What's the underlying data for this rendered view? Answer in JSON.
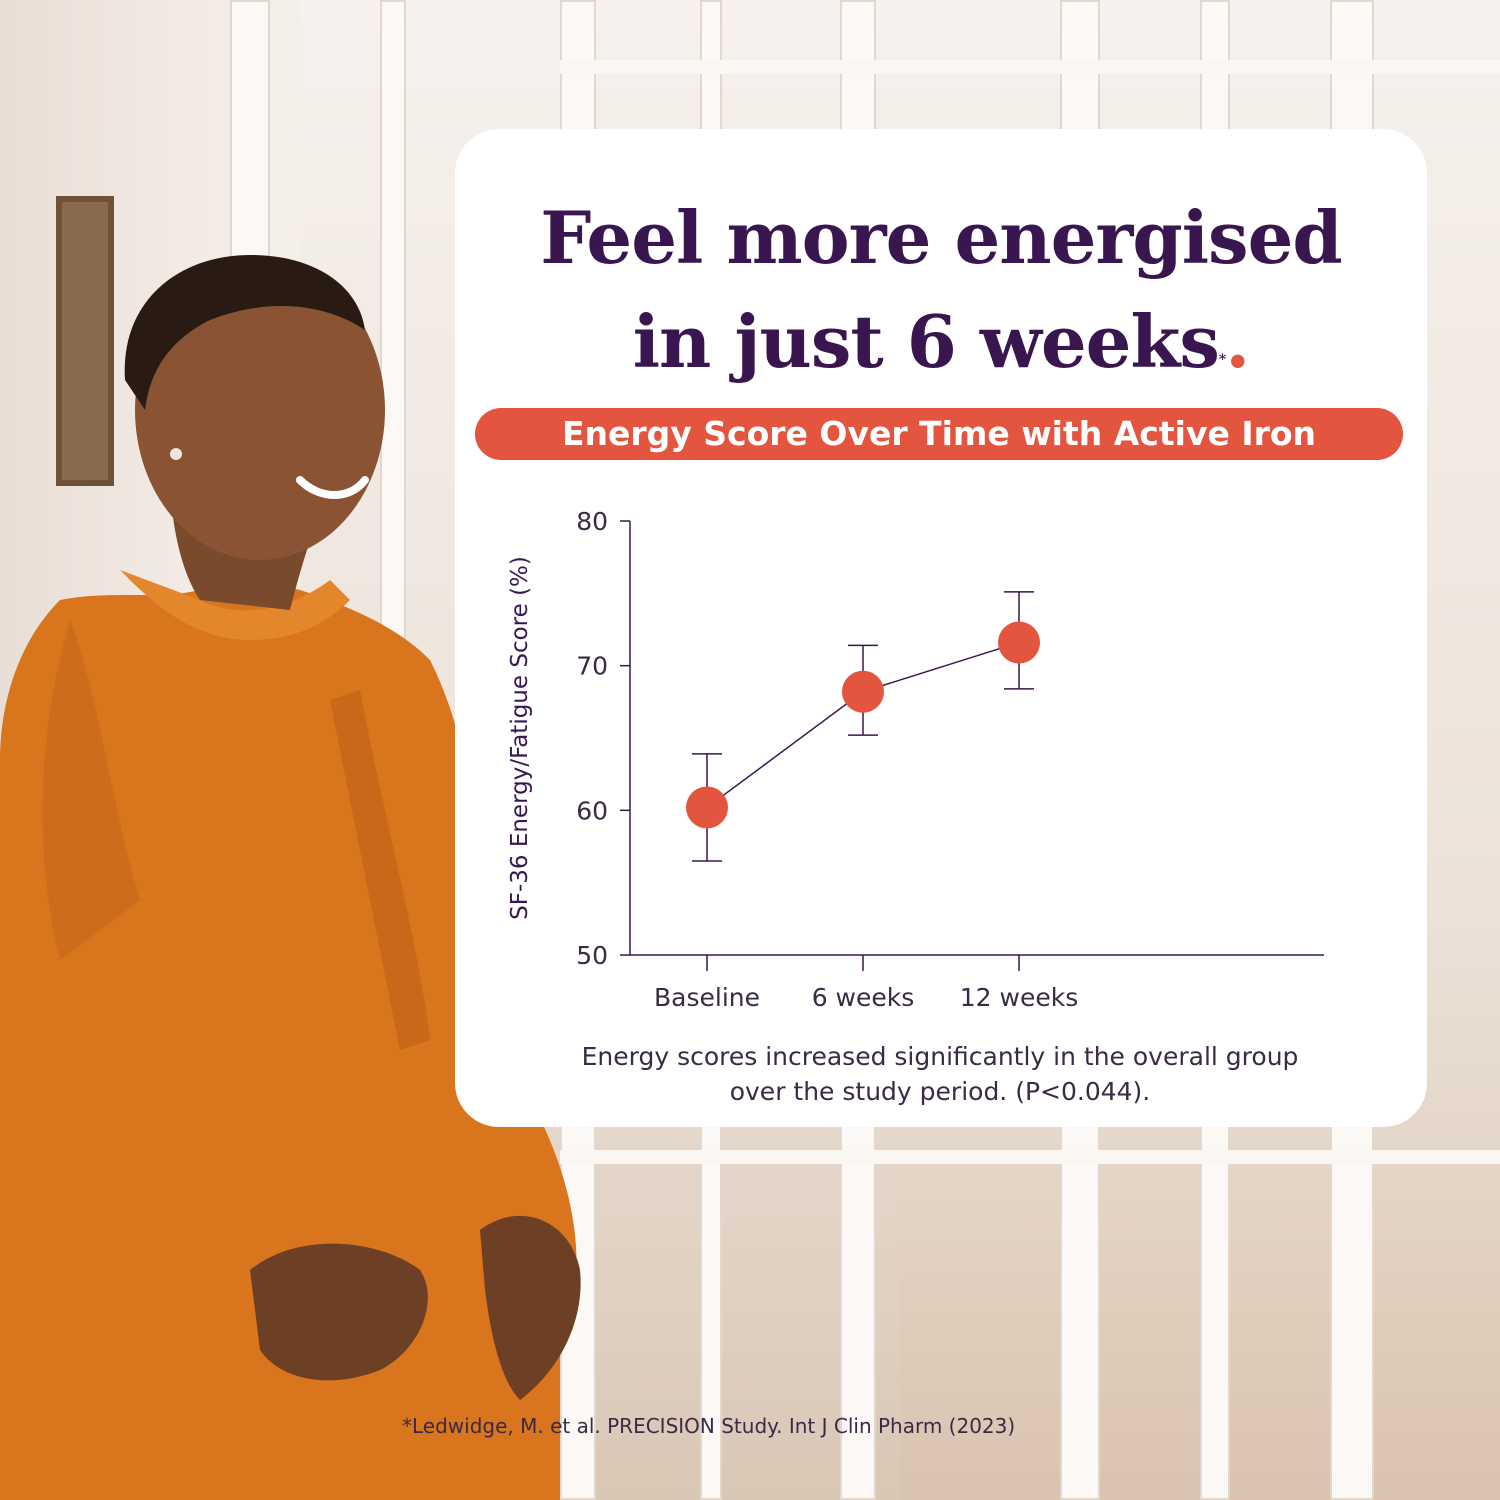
{
  "headline": {
    "line1": "Feel more energised",
    "line2": "in just 6 weeks",
    "asterisk": "*",
    "period": "."
  },
  "colors": {
    "brand_purple": "#3a1650",
    "accent_coral": "#e4553f",
    "card_bg": "#ffffff"
  },
  "chart_data": {
    "type": "scatter",
    "title": "Energy Score Over Time with Active Iron",
    "xlabel": "",
    "ylabel": "SF-36 Energy/Fatigue Score (%)",
    "categories": [
      "Baseline",
      "6 weeks",
      "12 weeks"
    ],
    "series": [
      {
        "values": [
          60.2,
          68.2,
          71.6
        ],
        "error_low": [
          56.5,
          65.2,
          68.4
        ],
        "error_high": [
          63.9,
          71.4,
          75.1
        ]
      }
    ],
    "ylim": [
      50,
      80
    ],
    "yticks": [
      50,
      60,
      70,
      80
    ],
    "grid": false,
    "connected": true
  },
  "caption": "Energy scores increased significantly in the overall group over the study period. (P<0.044).",
  "footnote": "*Ledwidge, M. et al. PRECISION Study. Int J Clin Pharm (2023)"
}
